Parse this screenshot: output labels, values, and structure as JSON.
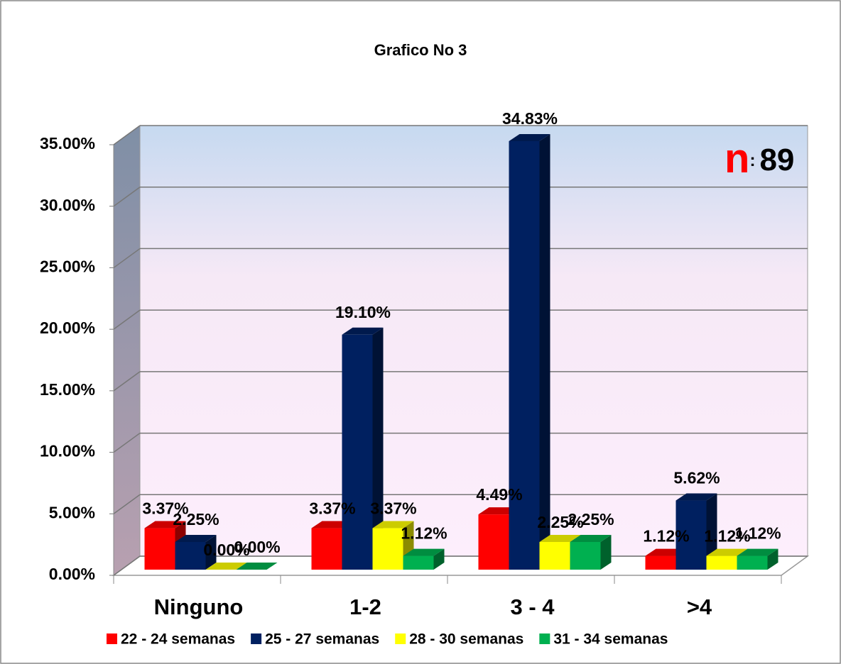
{
  "chart_data": {
    "type": "bar3d",
    "title": "Grafico No 3",
    "annotation": {
      "symbol": "n",
      "separator": ":",
      "count": 89
    },
    "categories": [
      "Ninguno",
      "1-2",
      "3 - 4",
      ">4"
    ],
    "series": [
      {
        "name": "22 - 24 semanas",
        "color": "#ff0000",
        "values": [
          3.37,
          3.37,
          4.49,
          1.12
        ],
        "value_labels": [
          "3.37%",
          "3.37%",
          "4.49%",
          "1.12%"
        ]
      },
      {
        "name": "25 - 27 semanas",
        "color": "#002060",
        "values": [
          2.25,
          19.1,
          34.83,
          5.62
        ],
        "value_labels": [
          "2.25%",
          "19.10%",
          "34.83%",
          "5.62%"
        ]
      },
      {
        "name": "28 - 30 semanas",
        "color": "#ffff00",
        "values": [
          0.0,
          3.37,
          2.25,
          1.12
        ],
        "value_labels": [
          "0.00%",
          "3.37%",
          "2.25%",
          "1.12%"
        ]
      },
      {
        "name": "31 - 34 semanas",
        "color": "#00b050",
        "values": [
          0.0,
          1.12,
          2.25,
          1.12
        ],
        "value_labels": [
          "0.00%",
          "1.12%",
          "2.25%",
          "1.12%"
        ]
      }
    ],
    "ylim": [
      0,
      35
    ],
    "yticks": [
      {
        "value": 0,
        "label": "0.00%"
      },
      {
        "value": 5,
        "label": "5.00%"
      },
      {
        "value": 10,
        "label": "10.00%"
      },
      {
        "value": 15,
        "label": "15.00%"
      },
      {
        "value": 20,
        "label": "20.00%"
      },
      {
        "value": 25,
        "label": "25.00%"
      },
      {
        "value": 30,
        "label": "30.00%"
      },
      {
        "value": 35,
        "label": "35.00%"
      }
    ],
    "grid": true,
    "legend": "bottom"
  }
}
